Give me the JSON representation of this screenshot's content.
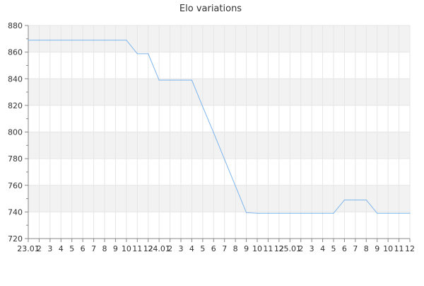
{
  "chart_data": {
    "type": "line",
    "title": "Elo variations",
    "xlabel": "",
    "ylabel": "",
    "ylim": [
      720,
      880
    ],
    "y_ticks": [
      720,
      740,
      760,
      780,
      800,
      820,
      840,
      860,
      880
    ],
    "grid": true,
    "x_tick_labels": [
      "23.01",
      "2",
      "3",
      "4",
      "5",
      "6",
      "7",
      "8",
      "9",
      "10",
      "11",
      "12",
      "24.01",
      "2",
      "3",
      "4",
      "5",
      "6",
      "7",
      "8",
      "9",
      "10",
      "11",
      "12",
      "25.01",
      "2",
      "3",
      "4",
      "5",
      "6",
      "7",
      "8",
      "9",
      "10",
      "11",
      "12"
    ],
    "series": [
      {
        "values": [
          869,
          869,
          869,
          869,
          869,
          869,
          869,
          869,
          869,
          869,
          858.8,
          858.8,
          839,
          839,
          839,
          839,
          819,
          799.5,
          779.5,
          759.5,
          739.5,
          739,
          739,
          739,
          739,
          739,
          739,
          739,
          739,
          749,
          749,
          749,
          739,
          739,
          739,
          739
        ],
        "color": "#7cb5ec"
      }
    ]
  }
}
